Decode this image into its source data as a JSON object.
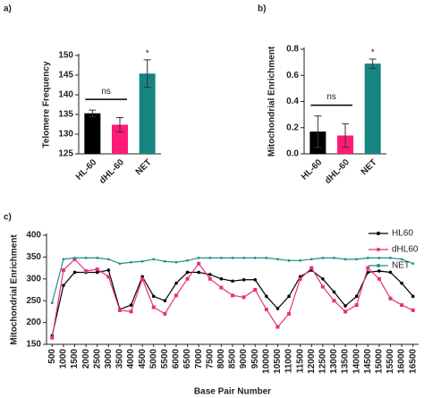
{
  "chart_data": [
    {
      "type": "bar",
      "panel": "a)",
      "ylabel": "Telomere Frequency",
      "categories": [
        "HL-60",
        "dHL-60",
        "NET"
      ],
      "values": [
        135.3,
        132.4,
        145.4
      ],
      "errors": [
        0.8,
        1.8,
        3.5
      ],
      "colors": [
        "#000000",
        "#ff1a75",
        "#16857f"
      ],
      "ylim": [
        125,
        150
      ],
      "yticks": [
        125,
        130,
        135,
        140,
        145,
        150
      ],
      "annotations": [
        "ns",
        "*"
      ]
    },
    {
      "type": "bar",
      "panel": "b)",
      "ylabel": "Mitochondrial Enrichment",
      "categories": [
        "HL-60",
        "dHL-60",
        "NET"
      ],
      "values": [
        0.17,
        0.14,
        0.69
      ],
      "errors": [
        0.12,
        0.09,
        0.035
      ],
      "colors": [
        "#000000",
        "#ff1a75",
        "#16857f"
      ],
      "ylim": [
        0,
        0.8
      ],
      "yticks": [
        {
          "value": 0,
          "label": "0.0"
        },
        0.2,
        0.4,
        0.6,
        0.8
      ],
      "annotations": [
        "ns",
        "*"
      ]
    },
    {
      "type": "line",
      "panel": "c)",
      "ylabel": "Mitochondrial  Enrichment",
      "xlabel": "Base Pair Number",
      "x": [
        500,
        1000,
        1500,
        2000,
        2500,
        3000,
        3500,
        4000,
        4500,
        5000,
        5500,
        6000,
        6500,
        7000,
        7500,
        8000,
        8500,
        9000,
        9500,
        10000,
        10500,
        11000,
        11500,
        12000,
        12500,
        13000,
        13500,
        14000,
        14500,
        15000,
        15500,
        16000,
        16500
      ],
      "xticks": [
        500,
        1000,
        1500,
        2000,
        2500,
        3000,
        3500,
        4000,
        4500,
        5000,
        5500,
        6000,
        6500,
        7000,
        7500,
        8000,
        8500,
        9000,
        9500,
        10000,
        10500,
        11000,
        11500,
        12000,
        12500,
        13000,
        13500,
        14000,
        14500,
        15000,
        15500,
        16000,
        16500
      ],
      "xlim": [
        250,
        16750
      ],
      "ylim": [
        150,
        400
      ],
      "yticks": [
        150,
        200,
        250,
        300,
        350,
        400
      ],
      "legend": "upper right",
      "series": [
        {
          "name": "HL60",
          "color": "#000000",
          "values": [
            170,
            285,
            315,
            315,
            315,
            320,
            230,
            240,
            305,
            260,
            250,
            290,
            315,
            315,
            310,
            300,
            295,
            298,
            298,
            260,
            232,
            260,
            305,
            320,
            300,
            270,
            238,
            260,
            315,
            318,
            315,
            290,
            260
          ]
        },
        {
          "name": "dHL60",
          "color": "#e8307a",
          "values": [
            165,
            320,
            345,
            318,
            322,
            305,
            228,
            225,
            300,
            235,
            220,
            262,
            300,
            335,
            300,
            280,
            262,
            258,
            275,
            230,
            190,
            220,
            300,
            325,
            282,
            250,
            225,
            240,
            325,
            300,
            255,
            240,
            228
          ]
        },
        {
          "name": "NET",
          "color": "#1f9088",
          "values": [
            245,
            345,
            348,
            348,
            348,
            345,
            335,
            338,
            340,
            345,
            340,
            338,
            342,
            348,
            348,
            348,
            348,
            348,
            348,
            348,
            345,
            342,
            342,
            345,
            348,
            348,
            345,
            345,
            348,
            348,
            348,
            345,
            335
          ]
        }
      ]
    }
  ]
}
